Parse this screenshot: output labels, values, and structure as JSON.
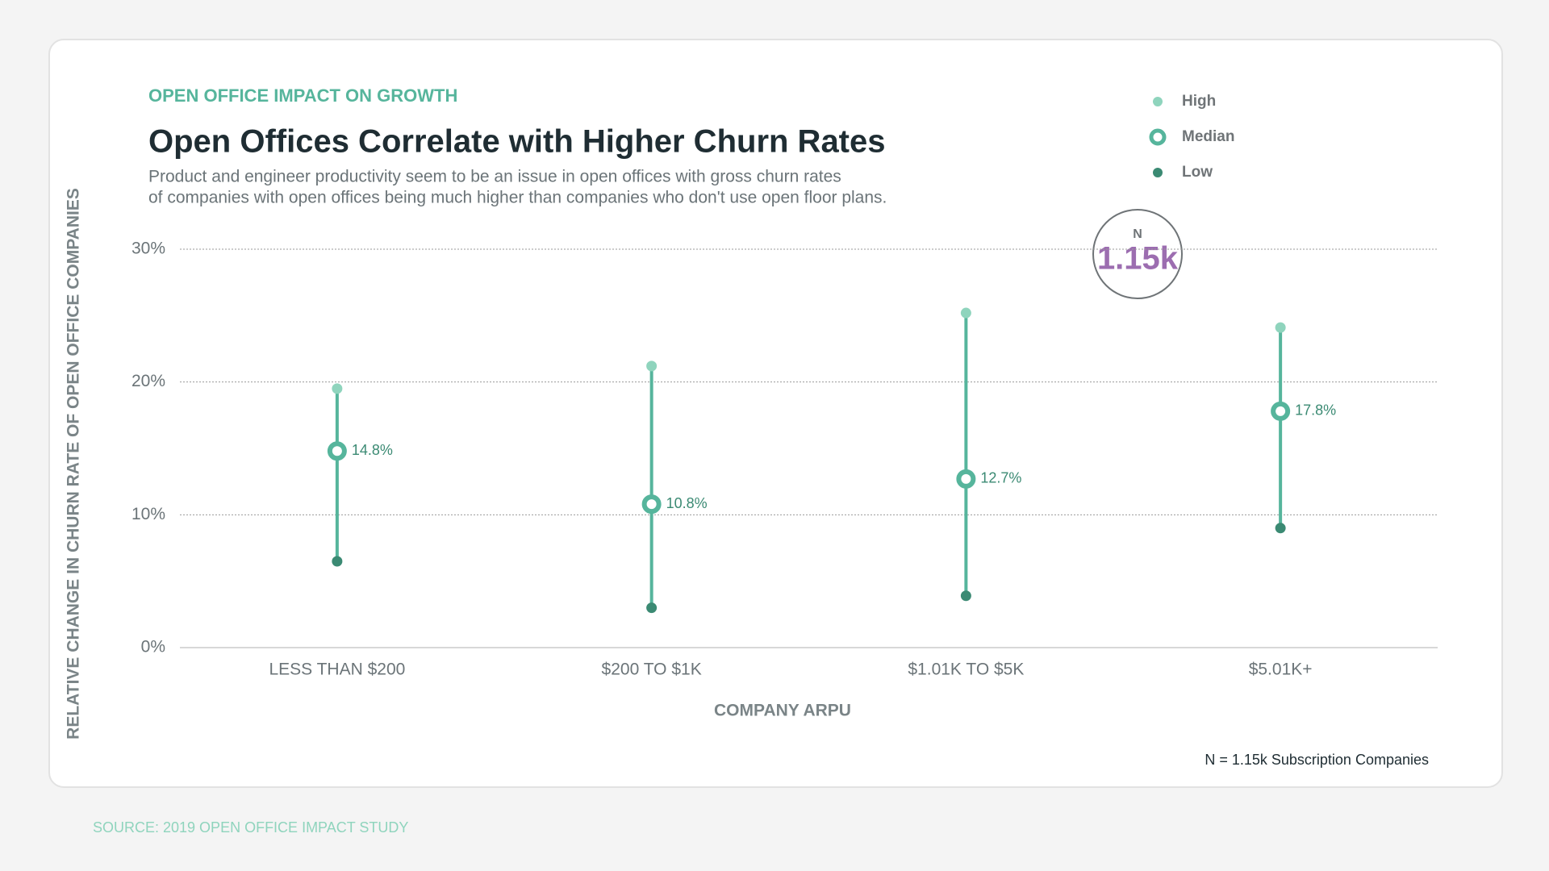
{
  "kicker": "OPEN OFFICE IMPACT ON GROWTH",
  "badge": {
    "label": "N",
    "value": "1.15k"
  },
  "footnote": "N = 1.15k Subscription Companies",
  "source": "SOURCE: 2019 OPEN OFFICE IMPACT STUDY",
  "chart_data": {
    "type": "range",
    "title": "Open Offices Correlate with Higher Churn Rates",
    "subtitle": [
      "Product and engineer productivity seem to be an issue in open offices with gross churn rates",
      "of companies with open offices being much higher than companies who don't use open floor plans."
    ],
    "x_label": "COMPANY ARPU",
    "y_label": "RELATIVE CHANGE IN CHURN RATE OF OPEN OFFICE COMPANIES",
    "categories": [
      "LESS THAN $200",
      "$200 TO $1K",
      "$1.01K TO $5K",
      "$5.01K+"
    ],
    "series": [
      {
        "name": "High",
        "color": "#8fd4bd",
        "values": [
          19.5,
          21.2,
          25.2,
          24.1
        ]
      },
      {
        "name": "Median",
        "color": "#56b59c",
        "values": [
          14.8,
          10.8,
          12.7,
          17.8
        ],
        "value_labels": [
          "14.8%",
          "10.8%",
          "12.7%",
          "17.8%"
        ]
      },
      {
        "name": "Low",
        "color": "#3b8a73",
        "values": [
          6.5,
          3.0,
          3.9,
          9.0
        ]
      }
    ],
    "ylim": [
      0,
      30
    ],
    "yticks": [
      {
        "value": 0,
        "label": "0%"
      },
      {
        "value": 10,
        "label": "10%"
      },
      {
        "value": 20,
        "label": "20%"
      },
      {
        "value": 30,
        "label": "30%"
      }
    ],
    "grid": true,
    "legend": "top-right"
  }
}
